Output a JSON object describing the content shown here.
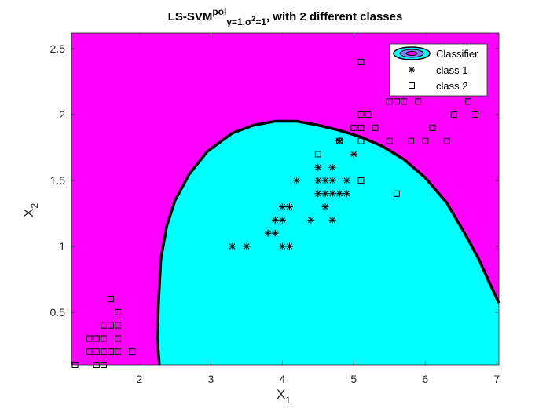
{
  "chart_data": {
    "type": "scatter",
    "title": {
      "main": "LS-SVM",
      "sup": "pol",
      "sub_gamma": "γ=1,σ",
      "sub_sup": "2",
      "sub_end": "=1",
      "rest": ", with 2 different classes"
    },
    "xlabel": "X",
    "xlabel_sub": "1",
    "ylabel": "X",
    "ylabel_sub": "2",
    "xlim": [
      1.05,
      7.03
    ],
    "ylim": [
      0.1,
      2.62
    ],
    "xticks": [
      2,
      3,
      4,
      5,
      6,
      7
    ],
    "yticks": [
      0.5,
      1,
      1.5,
      2,
      2.5
    ],
    "colors": {
      "background_region": "#ff00ff",
      "classifier_region": "#00ffff",
      "boundary": "#000000"
    },
    "legend": {
      "position": "top-right",
      "entries": [
        "Classifier",
        "class 1",
        "class 2"
      ]
    },
    "decision_boundary": [
      [
        2.28,
        0.1
      ],
      [
        2.25,
        0.3
      ],
      [
        2.27,
        0.6
      ],
      [
        2.3,
        0.9
      ],
      [
        2.38,
        1.15
      ],
      [
        2.5,
        1.35
      ],
      [
        2.7,
        1.55
      ],
      [
        2.95,
        1.72
      ],
      [
        3.3,
        1.86
      ],
      [
        3.6,
        1.92
      ],
      [
        3.9,
        1.95
      ],
      [
        4.2,
        1.95
      ],
      [
        4.5,
        1.92
      ],
      [
        4.8,
        1.88
      ],
      [
        5.1,
        1.83
      ],
      [
        5.4,
        1.76
      ],
      [
        5.7,
        1.66
      ],
      [
        6.0,
        1.52
      ],
      [
        6.3,
        1.33
      ],
      [
        6.55,
        1.1
      ],
      [
        6.75,
        0.9
      ],
      [
        6.9,
        0.72
      ],
      [
        7.03,
        0.57
      ]
    ],
    "series": [
      {
        "name": "class 1",
        "marker": "star",
        "points": [
          [
            3.3,
            1.0
          ],
          [
            3.5,
            1.0
          ],
          [
            3.8,
            1.1
          ],
          [
            3.9,
            1.1
          ],
          [
            3.9,
            1.2
          ],
          [
            4.0,
            1.2
          ],
          [
            4.0,
            1.3
          ],
          [
            4.1,
            1.3
          ],
          [
            4.0,
            1.0
          ],
          [
            4.1,
            1.0
          ],
          [
            4.2,
            1.5
          ],
          [
            4.4,
            1.2
          ],
          [
            4.5,
            1.4
          ],
          [
            4.5,
            1.5
          ],
          [
            4.5,
            1.6
          ],
          [
            4.6,
            1.3
          ],
          [
            4.6,
            1.4
          ],
          [
            4.6,
            1.5
          ],
          [
            4.7,
            1.4
          ],
          [
            4.7,
            1.5
          ],
          [
            4.7,
            1.6
          ],
          [
            4.7,
            1.2
          ],
          [
            4.8,
            1.4
          ],
          [
            4.8,
            1.8
          ],
          [
            4.9,
            1.5
          ],
          [
            4.9,
            1.4
          ],
          [
            5.0,
            1.7
          ]
        ]
      },
      {
        "name": "class 2",
        "marker": "square",
        "points": [
          [
            1.1,
            0.1
          ],
          [
            1.3,
            0.2
          ],
          [
            1.3,
            0.3
          ],
          [
            1.4,
            0.1
          ],
          [
            1.4,
            0.2
          ],
          [
            1.4,
            0.3
          ],
          [
            1.5,
            0.1
          ],
          [
            1.5,
            0.2
          ],
          [
            1.5,
            0.3
          ],
          [
            1.5,
            0.4
          ],
          [
            1.6,
            0.2
          ],
          [
            1.6,
            0.4
          ],
          [
            1.6,
            0.6
          ],
          [
            1.7,
            0.2
          ],
          [
            1.7,
            0.3
          ],
          [
            1.7,
            0.4
          ],
          [
            1.7,
            0.5
          ],
          [
            1.9,
            0.2
          ],
          [
            4.5,
            1.7
          ],
          [
            4.8,
            1.8
          ],
          [
            5.0,
            1.9
          ],
          [
            5.1,
            1.9
          ],
          [
            5.1,
            2.0
          ],
          [
            5.1,
            1.8
          ],
          [
            5.1,
            1.5
          ],
          [
            5.1,
            2.4
          ],
          [
            5.2,
            2.0
          ],
          [
            5.3,
            1.9
          ],
          [
            5.5,
            1.8
          ],
          [
            5.5,
            2.1
          ],
          [
            5.6,
            2.1
          ],
          [
            5.6,
            1.4
          ],
          [
            5.7,
            2.1
          ],
          [
            5.8,
            1.8
          ],
          [
            5.9,
            2.1
          ],
          [
            6.0,
            1.8
          ],
          [
            6.1,
            1.9
          ],
          [
            6.3,
            1.8
          ],
          [
            6.4,
            2.0
          ],
          [
            6.6,
            2.1
          ],
          [
            6.7,
            2.0
          ]
        ]
      }
    ]
  }
}
